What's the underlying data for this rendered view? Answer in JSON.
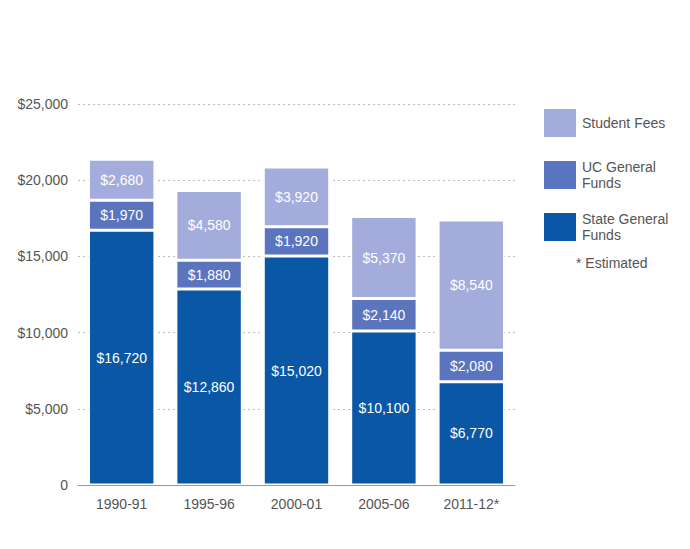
{
  "chart_data": {
    "type": "bar",
    "stacked": true,
    "data_labels": true,
    "grid": true,
    "legend": "right",
    "categories": [
      "1990-91",
      "1995-96",
      "2000-01",
      "2005-06",
      "2011-12*"
    ],
    "series": [
      {
        "name": "State General Funds",
        "color": "#0a57a6",
        "values": [
          16720,
          12860,
          15020,
          10100,
          6770
        ],
        "value_labels": [
          "$16,720",
          "$12,860",
          "$15,020",
          "$10,100",
          "$6,770"
        ]
      },
      {
        "name": "UC General Funds",
        "color": "#5a74bd",
        "values": [
          1970,
          1880,
          1920,
          2140,
          2080
        ],
        "value_labels": [
          "$1,970",
          "$1,880",
          "$1,920",
          "$2,140",
          "$2,080"
        ]
      },
      {
        "name": "Student Fees",
        "color": "#a4acdc",
        "values": [
          2680,
          4580,
          3920,
          5370,
          8540
        ],
        "value_labels": [
          "$2,680",
          "$4,580",
          "$3,920",
          "$5,370",
          "$8,540"
        ]
      }
    ],
    "ylim": [
      0,
      25000
    ],
    "yticks": [
      0,
      {
        "value": 5000,
        "label": "$5,000"
      },
      {
        "value": 10000,
        "label": "$10,000"
      },
      {
        "value": 15000,
        "label": "$15,000"
      },
      {
        "value": 20000,
        "label": "$20,000"
      },
      {
        "value": 25000,
        "label": "$25,000"
      }
    ],
    "annotations": [
      "* Estimated"
    ]
  }
}
